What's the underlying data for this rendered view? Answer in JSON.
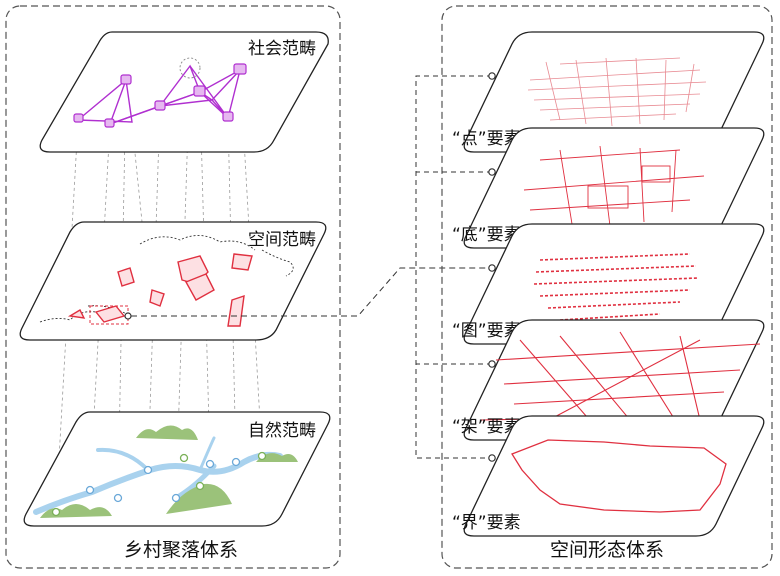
{
  "left_panel": {
    "title": "乡村聚落体系",
    "layers": {
      "social": "社会范畴",
      "spatial": "空间范畴",
      "natural": "自然范畴"
    }
  },
  "right_panel": {
    "title": "空间形态体系",
    "layers": {
      "point": "“点”要素",
      "base": "“底”要素",
      "figure": "“图”要素",
      "frame": "“架”要素",
      "boundary": "“界”要素"
    }
  },
  "colors": {
    "social_network": "#b030d0",
    "spatial_patch": "#e03040",
    "water": "#a9d2ee",
    "vegetation": "#9bc27a",
    "morphology": "#e03040",
    "frame_line": "#222222",
    "dashed": "#666666"
  }
}
